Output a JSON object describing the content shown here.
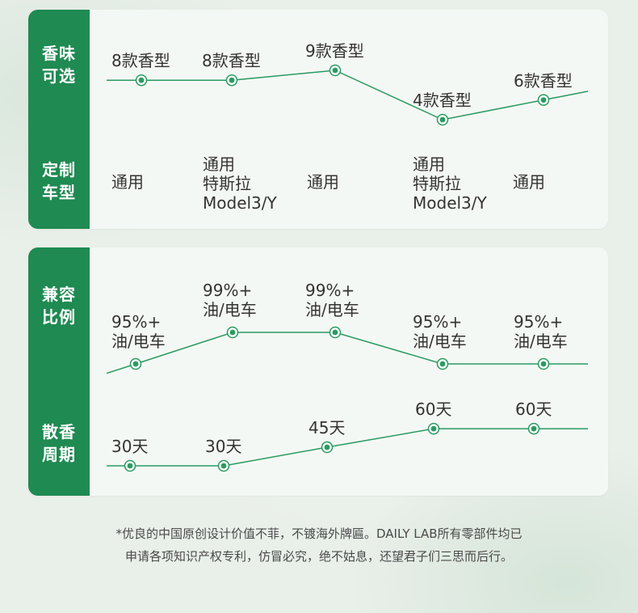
{
  "colors": {
    "accent": "#1f8a52",
    "line": "#2a9a62",
    "card_bg": "#f4f8f4",
    "page_bg": "#e9efe9"
  },
  "card1": {
    "rows": [
      {
        "label": [
          "香味",
          "可选"
        ]
      },
      {
        "label": [
          "定制",
          "车型"
        ]
      }
    ],
    "scent_points": [
      {
        "text": [
          "8款香型"
        ],
        "count": 8
      },
      {
        "text": [
          "8款香型"
        ],
        "count": 8
      },
      {
        "text": [
          "9款香型"
        ],
        "count": 9
      },
      {
        "text": [
          "4款香型"
        ],
        "count": 4
      },
      {
        "text": [
          "6款香型"
        ],
        "count": 6
      }
    ],
    "models": [
      {
        "text": [
          "通用"
        ]
      },
      {
        "text": [
          "通用",
          "特斯拉",
          "Model3/Y"
        ]
      },
      {
        "text": [
          "通用"
        ]
      },
      {
        "text": [
          "通用",
          "特斯拉",
          "Model3/Y"
        ]
      },
      {
        "text": [
          "通用"
        ]
      }
    ]
  },
  "card2": {
    "rows": [
      {
        "label": [
          "兼容",
          "比例"
        ]
      },
      {
        "label": [
          "散香",
          "周期"
        ]
      }
    ],
    "compat_points": [
      {
        "text": [
          "95%+",
          "油/电车"
        ],
        "percent": 95
      },
      {
        "text": [
          "99%+",
          "油/电车"
        ],
        "percent": 99
      },
      {
        "text": [
          "99%+",
          "油/电车"
        ],
        "percent": 99
      },
      {
        "text": [
          "95%+",
          "油/电车"
        ],
        "percent": 95
      },
      {
        "text": [
          "95%+",
          "油/电车"
        ],
        "percent": 95
      }
    ],
    "period_points": [
      {
        "text": [
          "30天"
        ],
        "days": 30
      },
      {
        "text": [
          "30天"
        ],
        "days": 30
      },
      {
        "text": [
          "45天"
        ],
        "days": 45
      },
      {
        "text": [
          "60天"
        ],
        "days": 60
      },
      {
        "text": [
          "60天"
        ],
        "days": 60
      }
    ]
  },
  "footer": {
    "line1": "*优良的中国原创设计价值不菲，不镀海外牌匾。DAILY LAB所有零部件均已",
    "line2": "申请各项知识产权专利，仿冒必究，绝不姑息，还望君子们三思而后行。"
  }
}
